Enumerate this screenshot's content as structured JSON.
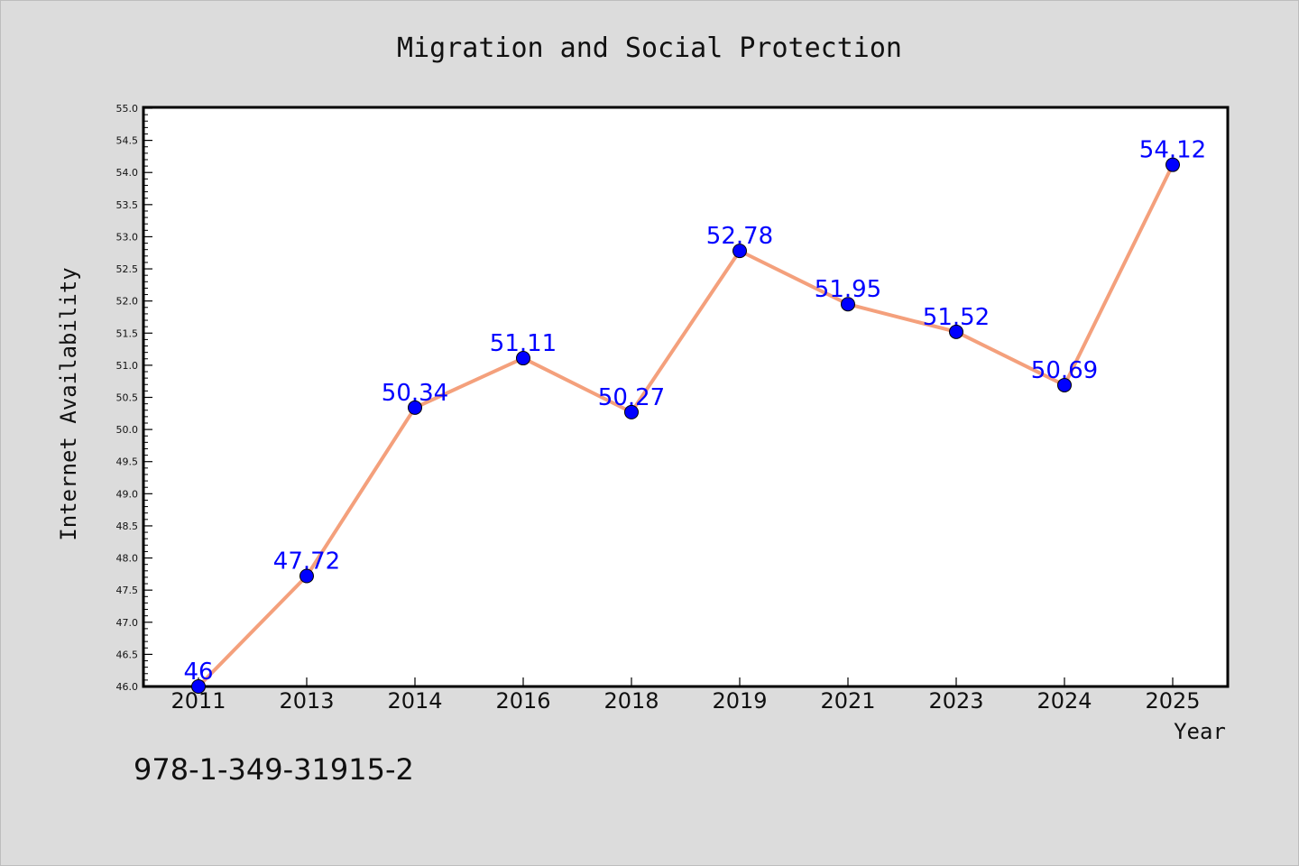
{
  "chart_data": {
    "type": "line",
    "title": "Migration and Social Protection",
    "xlabel": "Year",
    "ylabel": "Internet Availability",
    "categories": [
      "2011",
      "2013",
      "2014",
      "2016",
      "2018",
      "2019",
      "2021",
      "2023",
      "2024",
      "2025"
    ],
    "values": [
      46,
      47.72,
      50.34,
      51.11,
      50.27,
      52.78,
      51.95,
      51.52,
      50.69,
      54.12
    ],
    "data_labels": [
      "46",
      "47.72",
      "50.34",
      "51.11",
      "50.27",
      "52.78",
      "51.95",
      "51.52",
      "50.69",
      "54.12"
    ],
    "ylim": [
      46.0,
      55.0
    ],
    "yticks": [
      "46.0",
      "46.5",
      "47.0",
      "47.5",
      "48.0",
      "48.5",
      "49.0",
      "49.5",
      "50.0",
      "50.5",
      "51.0",
      "51.5",
      "52.0",
      "52.5",
      "53.0",
      "53.5",
      "54.0",
      "54.5",
      "55.0"
    ],
    "grid": false,
    "line_color": "#f4a07c",
    "marker_color": "#0000ff",
    "label_color": "#0000ff"
  },
  "annotation": {
    "isbn": "978-1-349-31915-2"
  }
}
